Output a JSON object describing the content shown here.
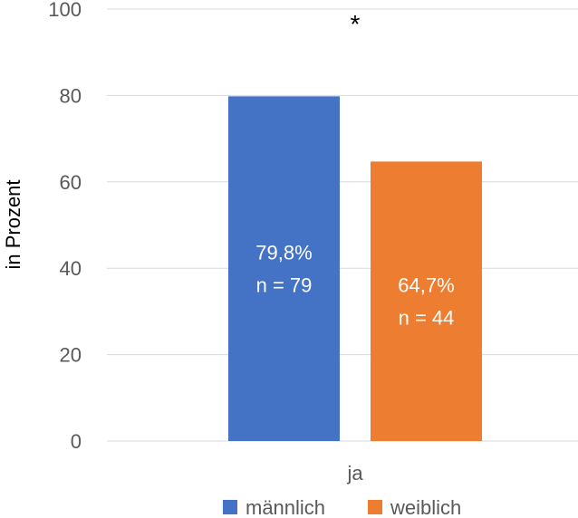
{
  "chart_data": {
    "type": "bar",
    "categories": [
      "ja"
    ],
    "series": [
      {
        "name": "männlich",
        "values": [
          79.8
        ],
        "color": "#4472C4",
        "labels": [
          "79,8%",
          "n = 79"
        ]
      },
      {
        "name": "weiblich",
        "values": [
          64.7
        ],
        "color": "#ED7D31",
        "labels": [
          "64,7%",
          "n = 44"
        ]
      }
    ],
    "title": "",
    "xlabel": "",
    "ylabel": "in Prozent",
    "ylim": [
      0,
      100
    ],
    "yticks": [
      0,
      20,
      40,
      60,
      80,
      100
    ],
    "annotation": "*",
    "grid": true,
    "legend": "bottom"
  }
}
